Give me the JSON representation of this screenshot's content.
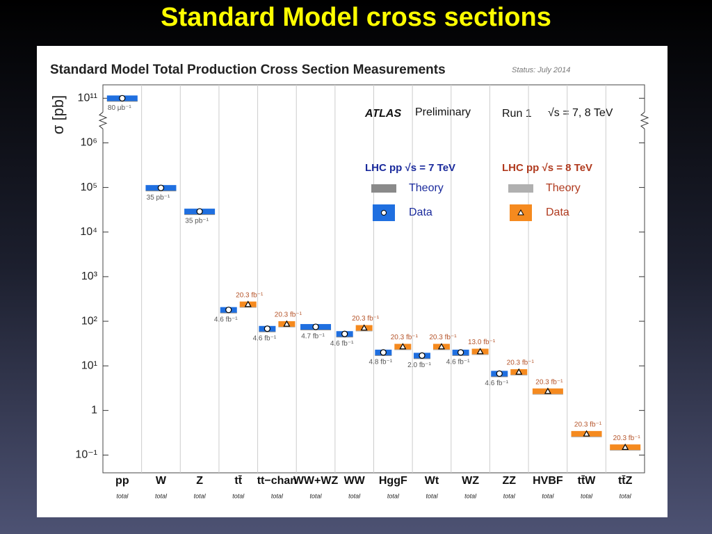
{
  "slide_title": "Standard Model cross sections",
  "chart_data": {
    "type": "scatter",
    "title": "Standard Model Total Production Cross Section Measurements",
    "status": "Status: July 2014",
    "y_label": "σ [pb]",
    "experiment": "ATLAS",
    "stage": "Preliminary",
    "run": "Run 1",
    "energy": "√s = 7, 8 TeV",
    "log_y": true,
    "axis_break": [
      10000000,
      100000000000
    ],
    "ylim": [
      0.04,
      200000000000
    ],
    "yticks": [
      {
        "value": 0.1,
        "label": "10⁻¹"
      },
      1,
      {
        "value": 10,
        "label": "10¹"
      },
      {
        "value": 100,
        "label": "10²"
      },
      {
        "value": 1000,
        "label": "10³"
      },
      {
        "value": 10000,
        "label": "10⁴"
      },
      {
        "value": 100000,
        "label": "10⁵"
      },
      {
        "value": 1000000,
        "label": "10⁶"
      },
      {
        "value": 100000000000,
        "label": "10¹¹"
      }
    ],
    "categories": [
      "pp",
      "W",
      "Z",
      "tt̄",
      "tt−chan",
      "WW+WZ",
      "WW",
      "HggF",
      "Wt",
      "WZ",
      "ZZ",
      "HVBF",
      "tt̄W",
      "tt̄Z"
    ],
    "sublabels": [
      "total",
      "total",
      "total",
      "total",
      "total",
      "total",
      "total",
      "total",
      "total",
      "total",
      "total",
      "total",
      "total",
      "total"
    ],
    "series": [
      {
        "name": "Data",
        "header": "LHC pp √s = 7 TeV",
        "header_color": "#1a2a9c",
        "theory": "Theory",
        "theory_color": "#8a8a8a",
        "color": "#1f6fe0",
        "marker": "circle",
        "values": [
          90000000000,
          98000,
          29000,
          180,
          68,
          75,
          52,
          20,
          17,
          20,
          6.7,
          null,
          null,
          null
        ],
        "lumi_labels": [
          "80 μb⁻¹",
          "35 pb⁻¹",
          "35 pb⁻¹",
          "4.6 fb⁻¹",
          "4.6 fb⁻¹",
          "4.7 fb⁻¹",
          "4.6 fb⁻¹",
          "4.8 fb⁻¹",
          "2.0 fb⁻¹",
          "4.6 fb⁻¹",
          "4.6 fb⁻¹",
          null,
          null,
          null
        ]
      },
      {
        "name": "Data",
        "header": "LHC pp √s = 8 TeV",
        "header_color": "#b03a1e",
        "theory": "Theory",
        "theory_color": "#b0b0b0",
        "color": "#f58a1f",
        "marker": "triangle",
        "values": [
          null,
          null,
          null,
          240,
          87,
          null,
          71,
          27,
          27,
          21,
          7.3,
          2.7,
          0.3,
          0.15
        ],
        "lumi_labels": [
          null,
          null,
          null,
          "20.3 fb⁻¹",
          "20.3 fb⁻¹",
          null,
          "20.3 fb⁻¹",
          "20.3 fb⁻¹",
          "20.3 fb⁻¹",
          "13.0 fb⁻¹",
          "20.3 fb⁻¹",
          "20.3 fb⁻¹",
          "20.3 fb⁻¹",
          "20.3 fb⁻¹"
        ]
      }
    ]
  }
}
